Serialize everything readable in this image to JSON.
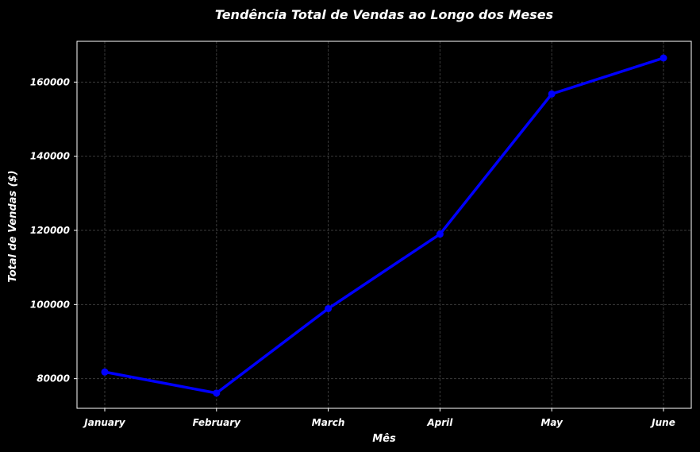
{
  "chart_data": {
    "type": "line",
    "title": "Tendência Total de Vendas ao Longo dos Meses",
    "xlabel": "Mês",
    "ylabel": "Total de Vendas ($)",
    "categories": [
      "January",
      "February",
      "March",
      "April",
      "May",
      "June"
    ],
    "series": [
      {
        "values": [
          81800,
          76100,
          98900,
          119000,
          156800,
          166500
        ],
        "color": "#0000ff",
        "marker": "circle"
      }
    ],
    "ylim": [
      72000,
      171000
    ],
    "yticks": [
      80000,
      100000,
      120000,
      140000,
      160000
    ],
    "ytick_labels": [
      "80000",
      "100000",
      "120000",
      "140000",
      "160000"
    ],
    "grid": true,
    "background": "#000000",
    "text_color": "#ffffff"
  }
}
